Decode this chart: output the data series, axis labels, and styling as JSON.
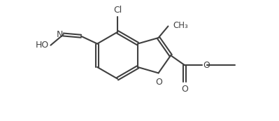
{
  "bg_color": "#ffffff",
  "line_color": "#404040",
  "line_width": 1.5,
  "text_color": "#404040",
  "font_size": 8.5,
  "figsize": [
    3.99,
    1.73
  ],
  "dpi": 100,
  "xlim": [
    0,
    10
  ],
  "ylim": [
    0,
    4.33
  ]
}
